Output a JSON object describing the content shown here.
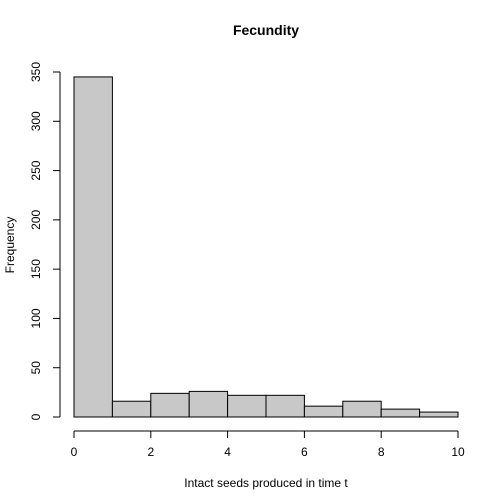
{
  "chart_data": {
    "type": "bar",
    "title": "Fecundity",
    "xlabel": "Intact seeds produced in time t",
    "ylabel": "Frequency",
    "bins": [
      {
        "start": 0,
        "end": 1,
        "value": 345
      },
      {
        "start": 1,
        "end": 2,
        "value": 16
      },
      {
        "start": 2,
        "end": 3,
        "value": 24
      },
      {
        "start": 3,
        "end": 4,
        "value": 26
      },
      {
        "start": 4,
        "end": 5,
        "value": 22
      },
      {
        "start": 5,
        "end": 6,
        "value": 22
      },
      {
        "start": 6,
        "end": 7,
        "value": 11
      },
      {
        "start": 7,
        "end": 8,
        "value": 16
      },
      {
        "start": 8,
        "end": 9,
        "value": 8
      },
      {
        "start": 9,
        "end": 10,
        "value": 5
      }
    ],
    "xlim": [
      0,
      10
    ],
    "ylim": [
      0,
      350
    ],
    "xticks": [
      0,
      2,
      4,
      6,
      8,
      10
    ],
    "yticks": [
      0,
      50,
      100,
      150,
      200,
      250,
      300,
      350
    ],
    "bar_fill": "#c8c8c8",
    "grid": false,
    "legend": "none"
  }
}
